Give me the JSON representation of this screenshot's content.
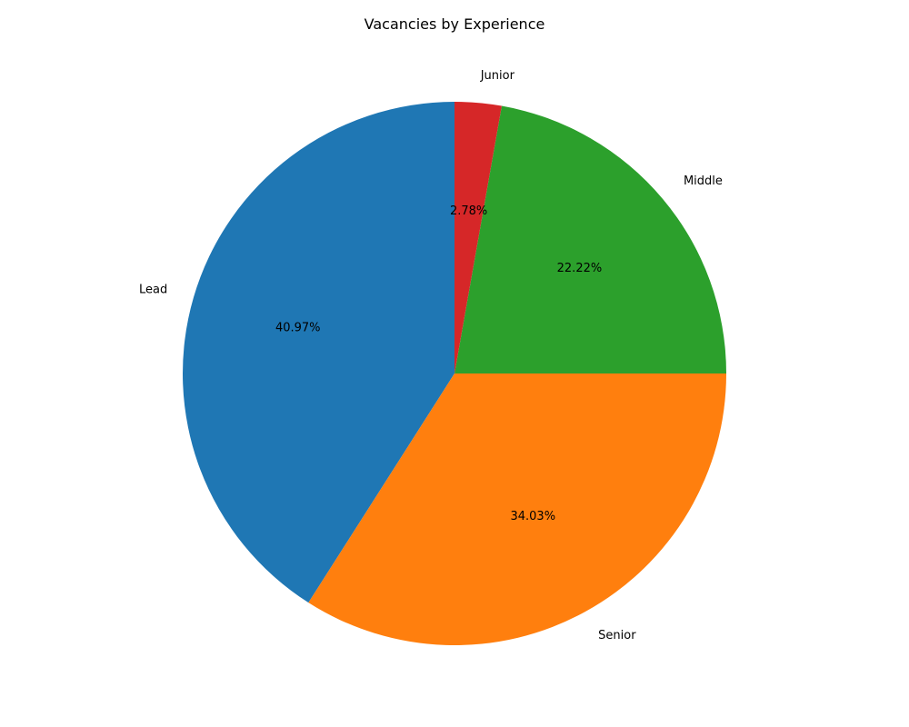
{
  "chart_data": {
    "type": "pie",
    "title": "Vacancies by Experience",
    "categories": [
      "Lead",
      "Senior",
      "Middle",
      "Junior"
    ],
    "values": [
      40.97,
      34.03,
      22.22,
      2.78
    ],
    "percent_labels": [
      "40.97%",
      "34.03%",
      "22.22%",
      "2.78%"
    ],
    "colors": [
      "#1f77b4",
      "#ff7f0e",
      "#2ca02c",
      "#d62728"
    ],
    "start_angle_deg": 90,
    "direction": "counterclockwise",
    "legend": "none"
  }
}
